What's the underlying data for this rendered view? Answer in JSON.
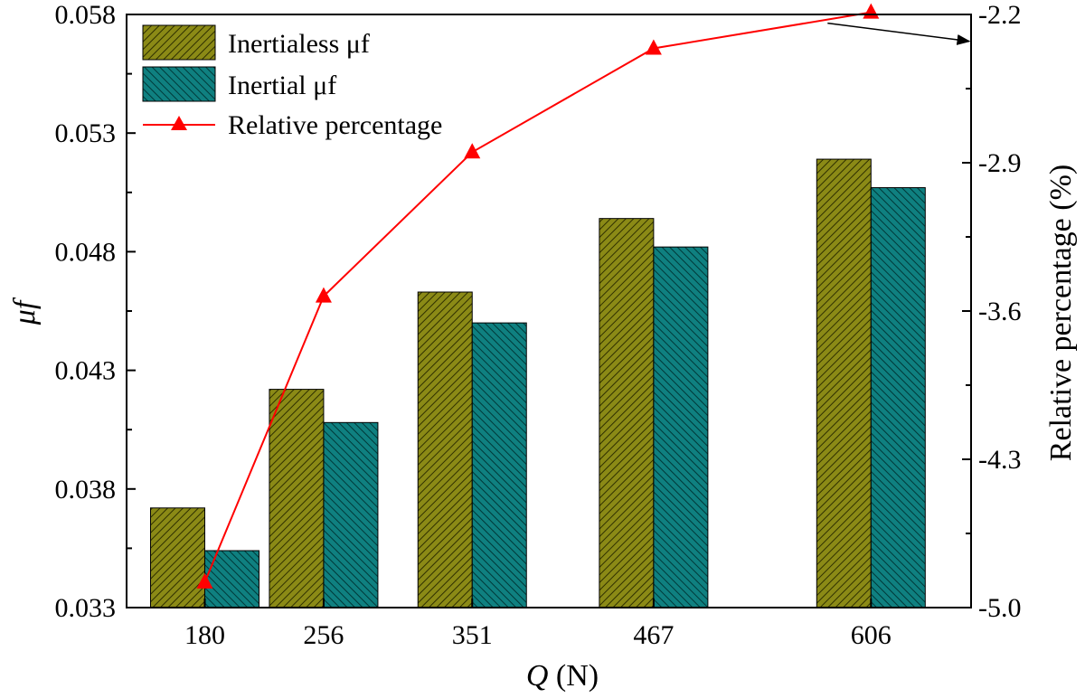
{
  "chart_data": {
    "type": "bar",
    "categories": [
      "180",
      "256",
      "351",
      "467",
      "606"
    ],
    "x_positions": [
      180,
      256,
      351,
      467,
      606
    ],
    "xlim": [
      130,
      670
    ],
    "xlabel_symbol": "Q",
    "xlabel_unit": "(N)",
    "ylabel": "μf",
    "ylim": [
      0.033,
      0.058
    ],
    "yticks": [
      "0.033",
      "0.038",
      "0.043",
      "0.048",
      "0.053",
      "0.058"
    ],
    "series": [
      {
        "name": "Inertialess μf",
        "values": [
          0.0372,
          0.0422,
          0.0463,
          0.0494,
          0.0519
        ],
        "color": "#8b8a16",
        "axis": "left",
        "kind": "bar"
      },
      {
        "name": "Inertial μf",
        "values": [
          0.0354,
          0.0408,
          0.045,
          0.0482,
          0.0507
        ],
        "color": "#0f8080",
        "axis": "left",
        "kind": "bar"
      },
      {
        "name": "Relative percentage",
        "values": [
          -4.88,
          -3.53,
          -2.85,
          -2.36,
          -2.19
        ],
        "color": "#ff0000",
        "axis": "right",
        "kind": "line",
        "marker": "triangle"
      }
    ],
    "y2label": "Relative percentage (%)",
    "y2lim": [
      -5.0,
      -2.2
    ],
    "y2ticks": [
      "-5.0",
      "-4.3",
      "-3.6",
      "-2.9",
      "-2.2"
    ],
    "legend_position": "top-left",
    "annotation": "arrow from the Relative percentage line to the right axis"
  }
}
